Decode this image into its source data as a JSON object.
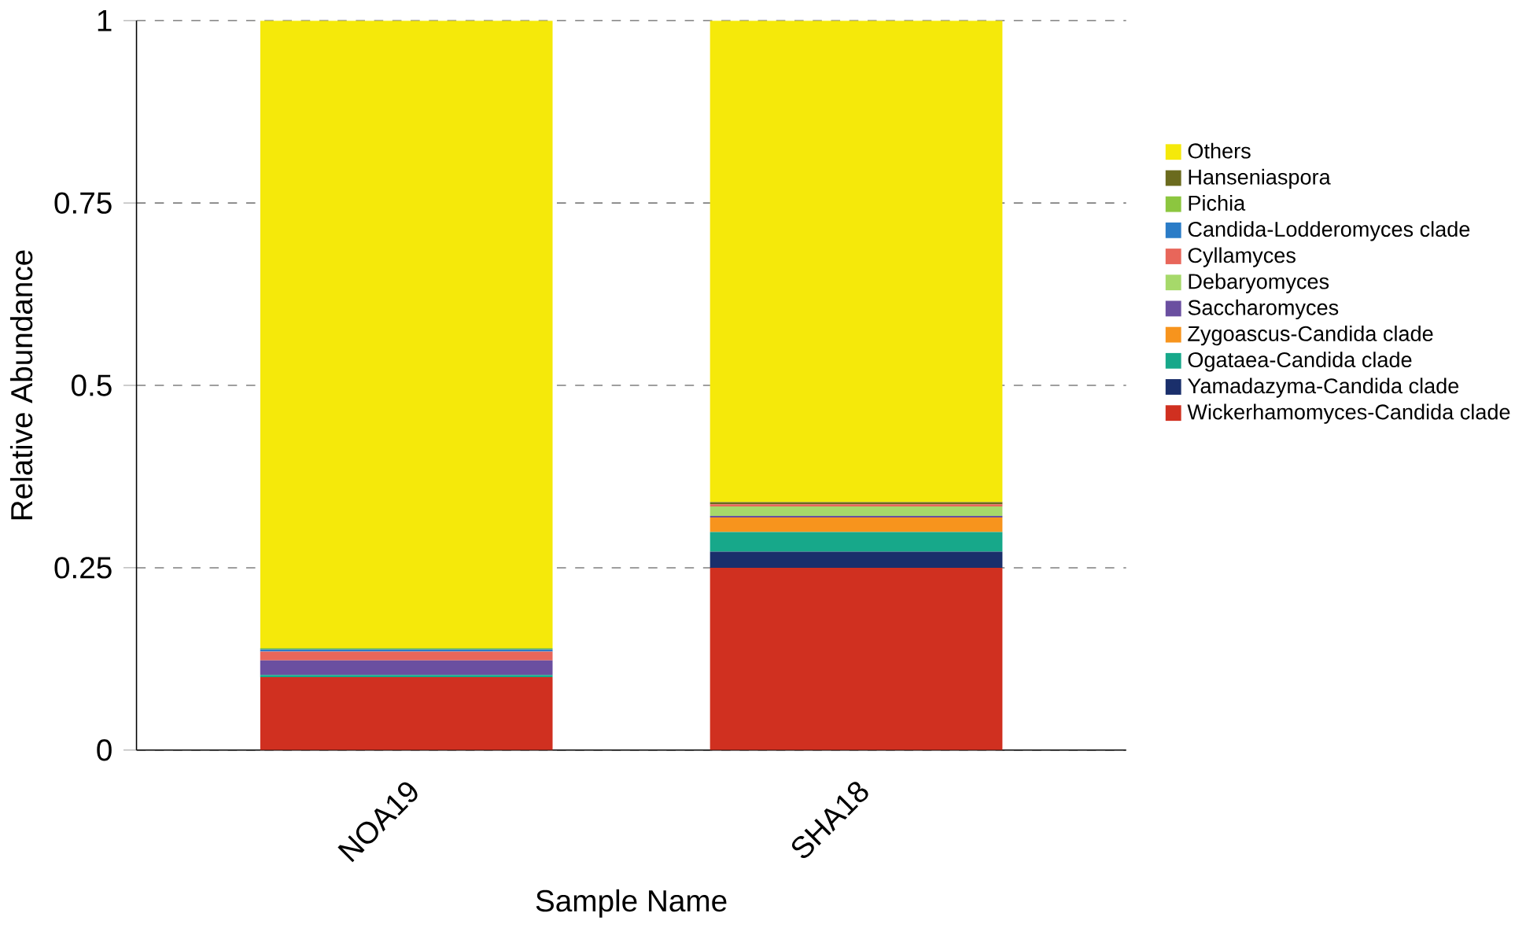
{
  "chart_data": {
    "type": "bar",
    "stacked": true,
    "xlabel": "Sample Name",
    "ylabel": "Relative Abundance",
    "categories": [
      "NOA19",
      "SHA18"
    ],
    "series": [
      {
        "name": "Wickerhamomyces-Candida clade",
        "color": "#d03020",
        "values": [
          0.1,
          0.25
        ]
      },
      {
        "name": "Yamadazyma-Candida clade",
        "color": "#1a2f6b",
        "values": [
          0,
          0.022
        ]
      },
      {
        "name": "Ogataea-Candida clade",
        "color": "#17a88a",
        "values": [
          0.003,
          0.027
        ]
      },
      {
        "name": "Zygoascus-Candida clade",
        "color": "#f7941d",
        "values": [
          0,
          0.02
        ]
      },
      {
        "name": "Saccharomyces",
        "color": "#6a4fa0",
        "values": [
          0.02,
          0.002
        ]
      },
      {
        "name": "Debaryomyces",
        "color": "#a6d96a",
        "values": [
          0,
          0.013
        ]
      },
      {
        "name": "Cyllamyces",
        "color": "#e8665a",
        "values": [
          0.012,
          0.003
        ]
      },
      {
        "name": "Candida-Lodderomyces clade",
        "color": "#2a7cc7",
        "values": [
          0.003,
          0
        ]
      },
      {
        "name": "Pichia",
        "color": "#8cc63f",
        "values": [
          0.002,
          0
        ]
      },
      {
        "name": "Hanseniaspora",
        "color": "#6b6b1e",
        "values": [
          0,
          0.003
        ]
      },
      {
        "name": "Others",
        "color": "#f5e90a",
        "values": [
          0.86,
          0.66
        ]
      }
    ],
    "ylim": [
      0,
      1
    ],
    "yticks": [
      0,
      0.25,
      0.5,
      0.75,
      1
    ],
    "grid": "y",
    "legend": "right"
  }
}
